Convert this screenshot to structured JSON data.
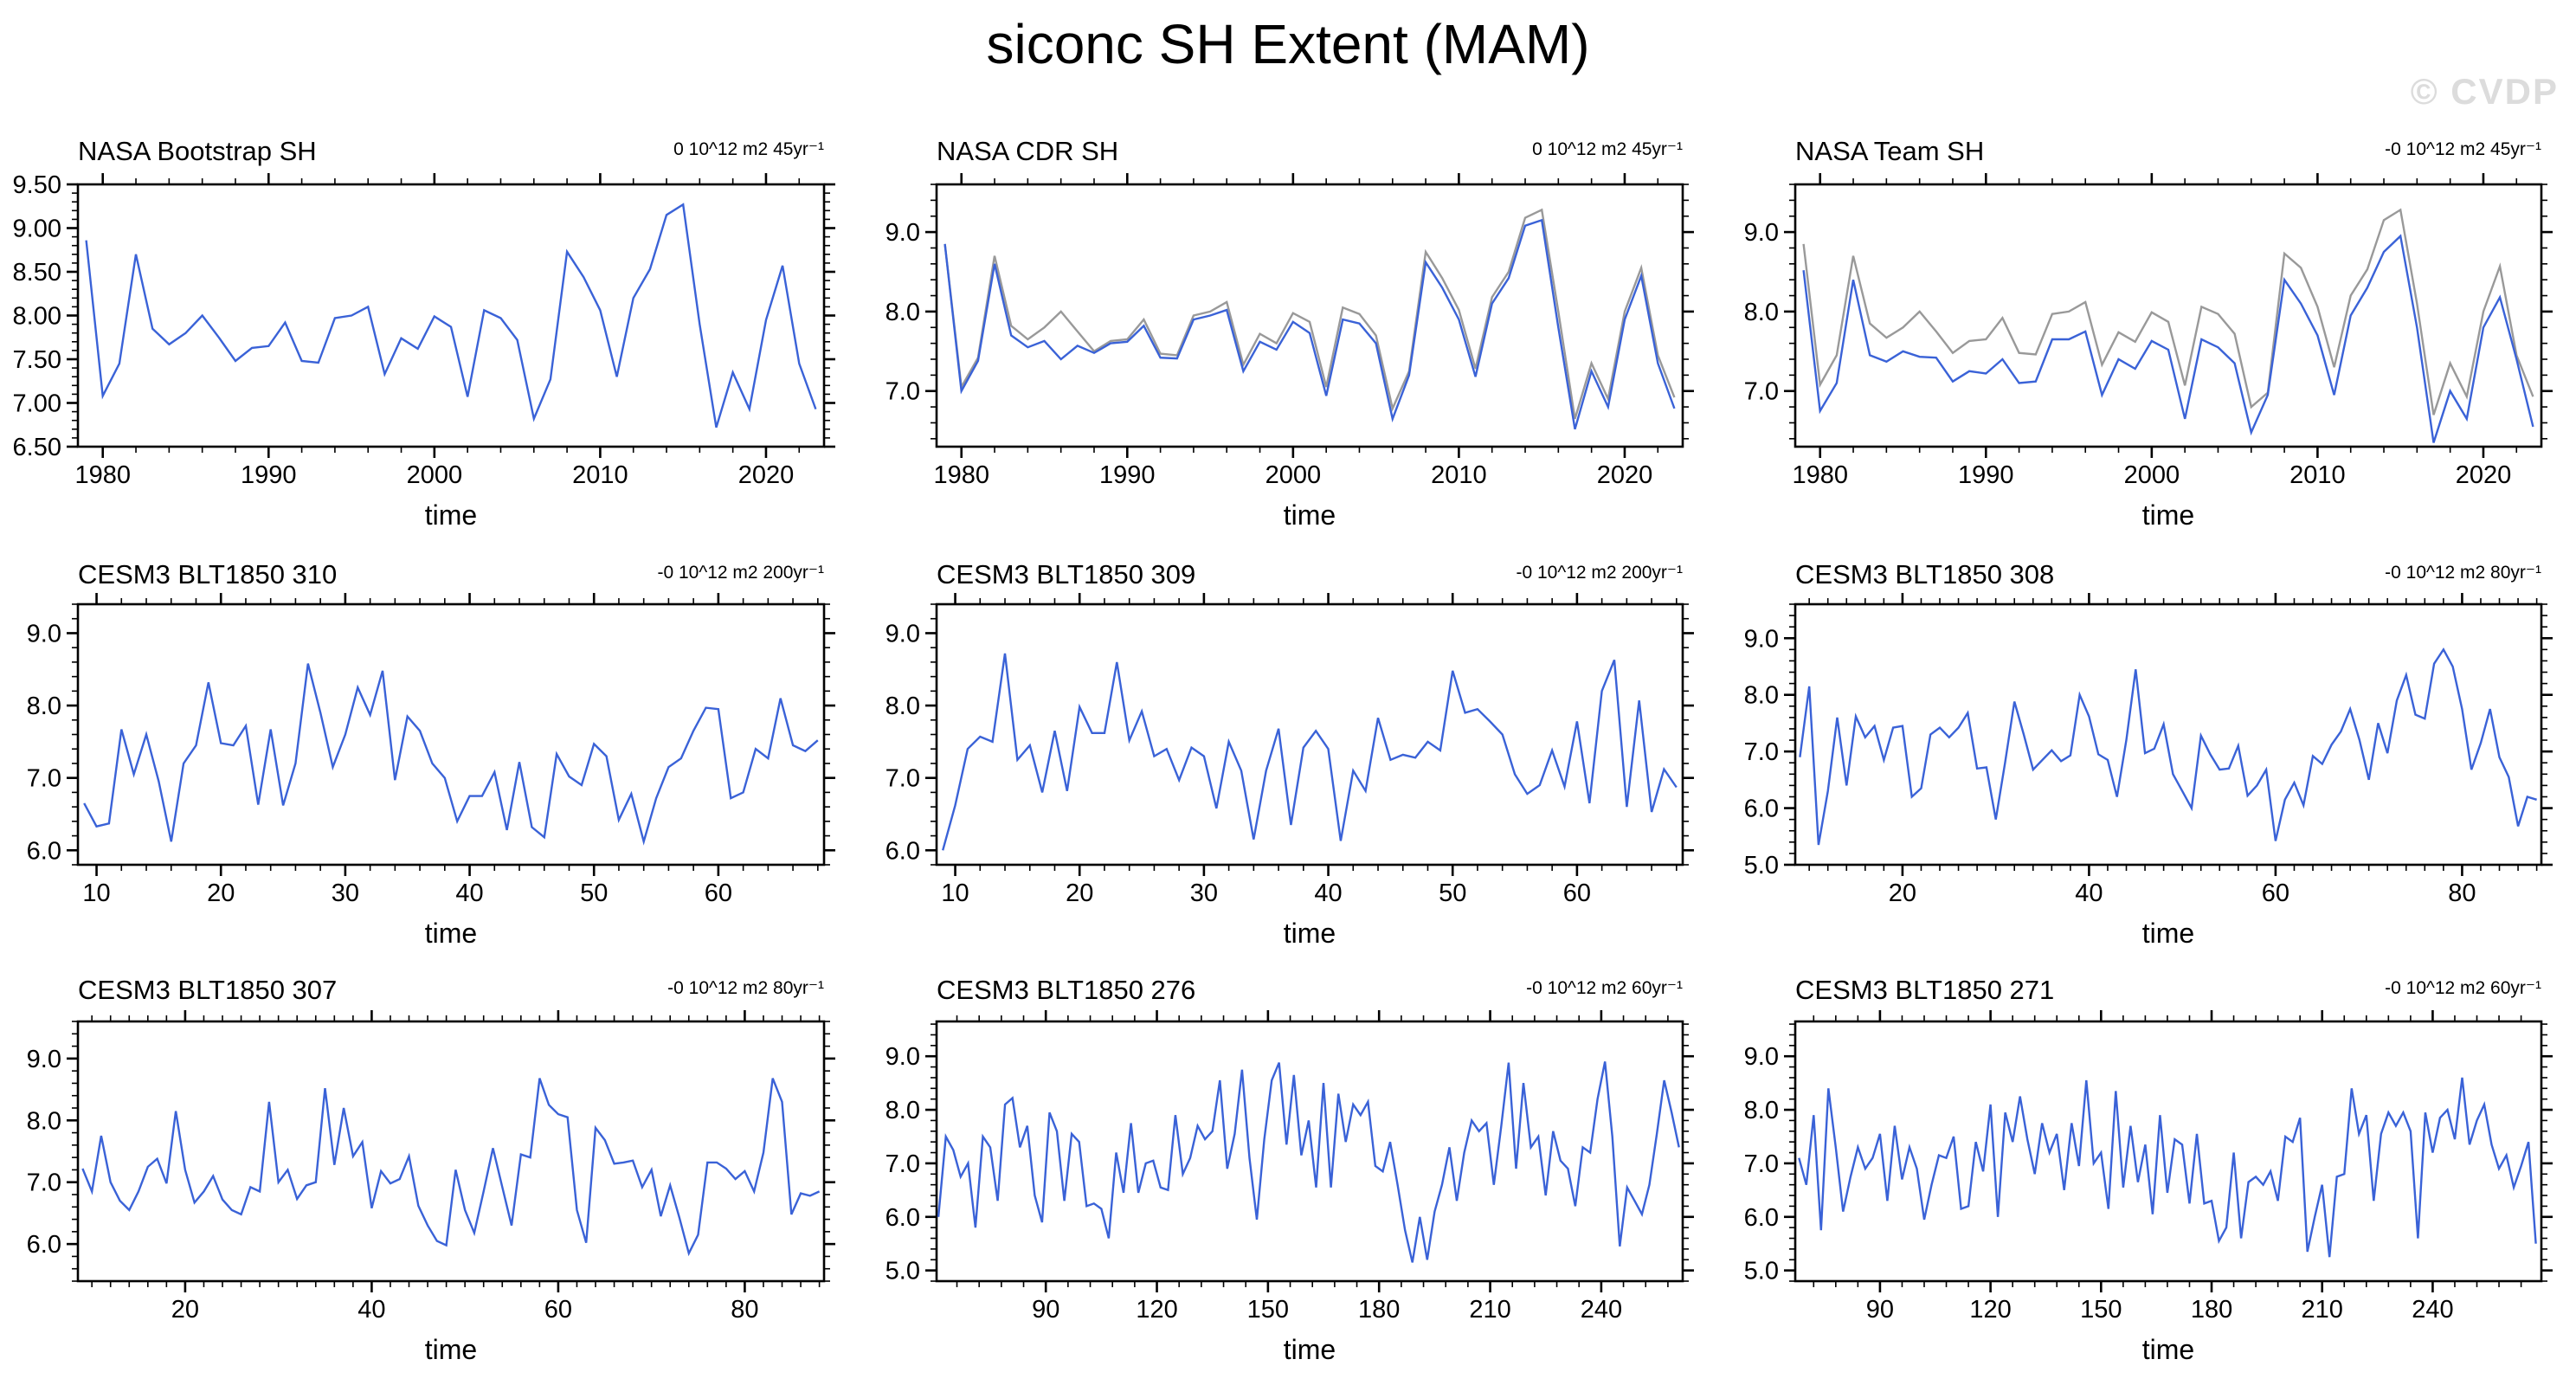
{
  "page": {
    "title": "siconc SH Extent (MAM)",
    "watermark": "© CVDP"
  },
  "colors": {
    "line_blue": "#3a62d7",
    "line_gray": "#999999",
    "watermark_gray": "#dcdcdc",
    "axis_black": "#000000"
  },
  "chart_data": [
    {
      "type": "line",
      "title": "NASA Bootstrap SH",
      "units": "0 10^12 m2 45yr⁻¹",
      "xlabel": "time",
      "x_ticks": [
        1980,
        1990,
        2000,
        2010,
        2020
      ],
      "x_minor": 2,
      "xlim": [
        1978.5,
        2023.5
      ],
      "y_ticks": [
        "6.50",
        "7.00",
        "7.50",
        "8.00",
        "8.50",
        "9.00",
        "9.50"
      ],
      "y_tick_vals": [
        6.5,
        7.0,
        7.5,
        8.0,
        8.5,
        9.0,
        9.5
      ],
      "y_minor": 0.1,
      "ylim": [
        6.5,
        9.5
      ],
      "grid": false,
      "legend": "none",
      "series": [
        {
          "color": "blue",
          "x_start": 1979,
          "x_step": 1,
          "values": [
            8.86,
            7.08,
            7.45,
            8.7,
            7.85,
            7.67,
            7.8,
            8.0,
            7.75,
            7.48,
            7.63,
            7.65,
            7.92,
            7.48,
            7.46,
            7.97,
            8.0,
            8.1,
            7.33,
            7.74,
            7.62,
            7.99,
            7.87,
            7.07,
            8.06,
            7.97,
            7.72,
            6.82,
            7.27,
            8.73,
            8.44,
            8.06,
            7.3,
            8.2,
            8.53,
            9.15,
            9.27,
            7.9,
            6.72,
            7.35,
            6.93,
            7.95,
            8.57,
            7.45,
            6.93
          ]
        }
      ]
    },
    {
      "type": "line",
      "title": "NASA CDR SH",
      "units": "0 10^12 m2 45yr⁻¹",
      "xlabel": "time",
      "x_ticks": [
        1980,
        1990,
        2000,
        2010,
        2020
      ],
      "x_minor": 2,
      "xlim": [
        1978.5,
        2023.5
      ],
      "y_ticks": [
        "7.0",
        "8.0",
        "9.0"
      ],
      "y_tick_vals": [
        7.0,
        8.0,
        9.0
      ],
      "y_minor": 0.2,
      "ylim": [
        6.3,
        9.6
      ],
      "grid": false,
      "legend": "none",
      "series": [
        {
          "color": "gray",
          "x_start": 1979,
          "x_step": 1,
          "values": [
            8.85,
            7.05,
            7.42,
            8.7,
            7.82,
            7.65,
            7.8,
            8.0,
            7.75,
            7.5,
            7.63,
            7.65,
            7.9,
            7.47,
            7.45,
            7.95,
            8.0,
            8.12,
            7.33,
            7.72,
            7.6,
            7.98,
            7.87,
            7.05,
            8.05,
            7.97,
            7.7,
            6.78,
            7.25,
            8.75,
            8.42,
            8.02,
            7.28,
            8.18,
            8.5,
            9.18,
            9.28,
            8.0,
            6.65,
            7.35,
            6.9,
            8.0,
            8.55,
            7.45,
            6.92
          ]
        },
        {
          "color": "blue",
          "x_start": 1979,
          "x_step": 1,
          "values": [
            8.85,
            7.0,
            7.38,
            8.6,
            7.7,
            7.55,
            7.63,
            7.4,
            7.57,
            7.48,
            7.6,
            7.62,
            7.82,
            7.42,
            7.41,
            7.9,
            7.95,
            8.02,
            7.25,
            7.62,
            7.52,
            7.87,
            7.73,
            6.94,
            7.9,
            7.85,
            7.6,
            6.65,
            7.2,
            8.62,
            8.3,
            7.9,
            7.18,
            8.1,
            8.42,
            9.08,
            9.15,
            7.8,
            6.52,
            7.25,
            6.8,
            7.9,
            8.45,
            7.35,
            6.78
          ]
        }
      ]
    },
    {
      "type": "line",
      "title": "NASA Team SH",
      "units": "-0 10^12 m2 45yr⁻¹",
      "xlabel": "time",
      "x_ticks": [
        1980,
        1990,
        2000,
        2010,
        2020
      ],
      "x_minor": 2,
      "xlim": [
        1978.5,
        2023.5
      ],
      "y_ticks": [
        "7.0",
        "8.0",
        "9.0"
      ],
      "y_tick_vals": [
        7.0,
        8.0,
        9.0
      ],
      "y_minor": 0.2,
      "ylim": [
        6.3,
        9.6
      ],
      "grid": false,
      "legend": "none",
      "series": [
        {
          "color": "gray",
          "x_start": 1979,
          "x_step": 1,
          "values": [
            8.85,
            7.08,
            7.45,
            8.7,
            7.85,
            7.67,
            7.8,
            8.0,
            7.75,
            7.48,
            7.63,
            7.65,
            7.92,
            7.48,
            7.46,
            7.97,
            8.0,
            8.12,
            7.33,
            7.74,
            7.62,
            7.99,
            7.87,
            7.07,
            8.06,
            7.97,
            7.72,
            6.8,
            6.98,
            8.73,
            8.55,
            8.06,
            7.3,
            8.2,
            8.53,
            9.15,
            9.28,
            8.1,
            6.7,
            7.35,
            6.93,
            8.0,
            8.57,
            7.45,
            6.93
          ]
        },
        {
          "color": "blue",
          "x_start": 1979,
          "x_step": 1,
          "values": [
            8.52,
            6.75,
            7.1,
            8.4,
            7.45,
            7.37,
            7.5,
            7.43,
            7.42,
            7.12,
            7.25,
            7.22,
            7.4,
            7.1,
            7.12,
            7.65,
            7.65,
            7.75,
            6.95,
            7.4,
            7.28,
            7.63,
            7.52,
            6.65,
            7.65,
            7.55,
            7.35,
            6.48,
            6.95,
            8.4,
            8.1,
            7.7,
            6.95,
            7.95,
            8.3,
            8.75,
            8.95,
            7.8,
            6.35,
            7.0,
            6.65,
            7.8,
            8.18,
            7.4,
            6.55
          ]
        }
      ]
    },
    {
      "type": "line",
      "title": "CESM3 BLT1850 310",
      "units": "-0 10^12 m2 200yr⁻¹",
      "xlabel": "time",
      "x_ticks": [
        10,
        20,
        30,
        40,
        50,
        60
      ],
      "x_minor": 2,
      "xlim": [
        8.5,
        68.5
      ],
      "y_ticks": [
        "6.0",
        "7.0",
        "8.0",
        "9.0"
      ],
      "y_tick_vals": [
        6.0,
        7.0,
        8.0,
        9.0
      ],
      "y_minor": 0.2,
      "ylim": [
        5.8,
        9.4
      ],
      "grid": false,
      "legend": "none",
      "series": [
        {
          "color": "blue",
          "x_start": 9,
          "x_step": 1,
          "values": [
            6.65,
            6.33,
            6.37,
            7.67,
            7.05,
            7.6,
            6.95,
            6.12,
            7.2,
            7.45,
            8.32,
            7.48,
            7.45,
            7.72,
            6.63,
            7.67,
            6.62,
            7.2,
            8.58,
            7.9,
            7.15,
            7.6,
            8.25,
            7.87,
            8.48,
            6.97,
            7.85,
            7.65,
            7.2,
            7.0,
            6.4,
            6.75,
            6.75,
            7.08,
            6.28,
            7.22,
            6.32,
            6.18,
            7.33,
            7.02,
            6.9,
            7.47,
            7.3,
            6.42,
            6.78,
            6.12,
            6.72,
            7.15,
            7.27,
            7.65,
            7.97,
            7.95,
            6.72,
            6.8,
            7.4,
            7.27,
            8.1,
            7.45,
            7.37,
            7.52
          ]
        }
      ]
    },
    {
      "type": "line",
      "title": "CESM3 BLT1850 309",
      "units": "-0 10^12 m2 200yr⁻¹",
      "xlabel": "time",
      "x_ticks": [
        10,
        20,
        30,
        40,
        50,
        60
      ],
      "x_minor": 2,
      "xlim": [
        8.5,
        68.5
      ],
      "y_ticks": [
        "6.0",
        "7.0",
        "8.0",
        "9.0"
      ],
      "y_tick_vals": [
        6.0,
        7.0,
        8.0,
        9.0
      ],
      "y_minor": 0.2,
      "ylim": [
        5.8,
        9.4
      ],
      "grid": false,
      "legend": "none",
      "series": [
        {
          "color": "blue",
          "x_start": 9,
          "x_step": 1,
          "values": [
            6.0,
            6.62,
            7.4,
            7.57,
            7.5,
            8.72,
            7.25,
            7.45,
            6.8,
            7.65,
            6.82,
            7.98,
            7.62,
            7.62,
            8.6,
            7.52,
            7.92,
            7.3,
            7.4,
            6.97,
            7.42,
            7.3,
            6.58,
            7.5,
            7.1,
            6.15,
            7.1,
            7.68,
            6.35,
            7.42,
            7.65,
            7.4,
            6.13,
            7.1,
            6.82,
            7.83,
            7.25,
            7.32,
            7.28,
            7.5,
            7.38,
            8.48,
            7.9,
            7.95,
            7.78,
            7.6,
            7.05,
            6.78,
            6.9,
            7.38,
            6.88,
            7.78,
            6.65,
            8.2,
            8.63,
            6.6,
            8.07,
            6.53,
            7.12,
            6.87
          ]
        }
      ]
    },
    {
      "type": "line",
      "title": "CESM3 BLT1850 308",
      "units": "-0 10^12 m2 80yr⁻¹",
      "xlabel": "time",
      "x_ticks": [
        20,
        40,
        60,
        80
      ],
      "x_minor": 2,
      "xlim": [
        8.5,
        88.5
      ],
      "y_ticks": [
        "5.0",
        "6.0",
        "7.0",
        "8.0",
        "9.0"
      ],
      "y_tick_vals": [
        5.0,
        6.0,
        7.0,
        8.0,
        9.0
      ],
      "y_minor": 0.2,
      "ylim": [
        5.0,
        9.6
      ],
      "grid": false,
      "legend": "none",
      "series": [
        {
          "color": "blue",
          "x_start": 9,
          "x_step": 1,
          "values": [
            6.9,
            8.15,
            5.35,
            6.3,
            7.6,
            6.4,
            7.62,
            7.25,
            7.45,
            6.85,
            7.42,
            7.45,
            6.2,
            6.35,
            7.3,
            7.42,
            7.25,
            7.42,
            7.68,
            6.7,
            6.72,
            5.8,
            6.8,
            7.88,
            7.3,
            6.68,
            6.85,
            7.02,
            6.83,
            6.93,
            8.0,
            7.62,
            6.95,
            6.85,
            6.2,
            7.2,
            8.45,
            6.97,
            7.05,
            7.48,
            6.6,
            6.3,
            6.0,
            7.28,
            6.95,
            6.68,
            6.7,
            7.1,
            6.22,
            6.4,
            6.68,
            5.42,
            6.15,
            6.45,
            6.05,
            6.92,
            6.78,
            7.12,
            7.35,
            7.75,
            7.2,
            6.5,
            7.5,
            6.97,
            7.9,
            8.35,
            7.65,
            7.58,
            8.55,
            8.8,
            8.5,
            7.75,
            6.68,
            7.15,
            7.75,
            6.9,
            6.55,
            5.68,
            6.2,
            6.15
          ]
        }
      ]
    },
    {
      "type": "line",
      "title": "CESM3 BLT1850 307",
      "units": "-0 10^12 m2 80yr⁻¹",
      "xlabel": "time",
      "x_ticks": [
        20,
        40,
        60,
        80
      ],
      "x_minor": 2,
      "xlim": [
        8.5,
        88.5
      ],
      "y_ticks": [
        "6.0",
        "7.0",
        "8.0",
        "9.0"
      ],
      "y_tick_vals": [
        6.0,
        7.0,
        8.0,
        9.0
      ],
      "y_minor": 0.2,
      "ylim": [
        5.4,
        9.6
      ],
      "grid": false,
      "legend": "none",
      "series": [
        {
          "color": "blue",
          "x_start": 9,
          "x_step": 1,
          "values": [
            7.22,
            6.85,
            7.75,
            7.0,
            6.7,
            6.55,
            6.85,
            7.25,
            7.38,
            6.98,
            8.15,
            7.2,
            6.67,
            6.85,
            7.1,
            6.72,
            6.55,
            6.48,
            6.92,
            6.85,
            8.3,
            7.0,
            7.2,
            6.73,
            6.95,
            7.0,
            8.52,
            7.28,
            8.2,
            7.42,
            7.65,
            6.58,
            7.18,
            6.98,
            7.05,
            7.42,
            6.62,
            6.3,
            6.05,
            5.98,
            7.2,
            6.55,
            6.18,
            6.85,
            7.55,
            6.92,
            6.3,
            7.45,
            7.4,
            8.68,
            8.25,
            8.1,
            8.05,
            6.55,
            6.02,
            7.88,
            7.68,
            7.3,
            7.32,
            7.35,
            6.92,
            7.2,
            6.45,
            6.95,
            6.42,
            5.85,
            6.15,
            7.32,
            7.32,
            7.22,
            7.05,
            7.18,
            6.85,
            7.48,
            8.68,
            8.3,
            6.48,
            6.82,
            6.78,
            6.85
          ]
        }
      ]
    },
    {
      "type": "line",
      "title": "CESM3 BLT1850 276",
      "units": "-0 10^12 m2 60yr⁻¹",
      "xlabel": "time",
      "x_ticks": [
        90,
        120,
        150,
        180,
        210,
        240
      ],
      "x_minor": 6,
      "xlim": [
        60.5,
        262
      ],
      "y_ticks": [
        "5.0",
        "6.0",
        "7.0",
        "8.0",
        "9.0"
      ],
      "y_tick_vals": [
        5.0,
        6.0,
        7.0,
        8.0,
        9.0
      ],
      "y_minor": 0.2,
      "ylim": [
        4.8,
        9.65
      ],
      "grid": false,
      "legend": "none",
      "series": [
        {
          "color": "blue",
          "x_start": 61,
          "x_step": 2,
          "values": [
            6.0,
            7.5,
            7.25,
            6.75,
            7.0,
            5.8,
            7.5,
            7.3,
            6.3,
            8.1,
            8.22,
            7.3,
            7.7,
            6.4,
            5.9,
            7.95,
            7.6,
            6.3,
            7.55,
            7.4,
            6.2,
            6.25,
            6.15,
            5.6,
            7.2,
            6.45,
            7.75,
            6.45,
            7.0,
            7.05,
            6.55,
            6.5,
            7.9,
            6.8,
            7.1,
            7.7,
            7.45,
            7.6,
            8.55,
            6.9,
            7.55,
            8.75,
            7.1,
            5.95,
            7.45,
            8.55,
            8.88,
            7.35,
            8.65,
            7.15,
            7.8,
            6.55,
            8.5,
            6.55,
            8.3,
            7.4,
            8.1,
            7.9,
            8.15,
            6.95,
            6.85,
            7.4,
            6.6,
            5.75,
            5.15,
            6.0,
            5.2,
            6.1,
            6.6,
            7.3,
            6.3,
            7.2,
            7.8,
            7.6,
            7.75,
            6.6,
            7.7,
            8.88,
            6.9,
            8.5,
            7.3,
            7.5,
            6.4,
            7.6,
            7.05,
            6.9,
            6.2,
            7.3,
            7.2,
            8.2,
            8.9,
            7.5,
            5.45,
            6.55,
            6.3,
            6.05,
            6.6,
            7.55,
            8.55,
            7.95,
            7.3
          ]
        }
      ]
    },
    {
      "type": "line",
      "title": "CESM3 BLT1850 271",
      "units": "-0 10^12 m2 60yr⁻¹",
      "xlabel": "time",
      "x_ticks": [
        90,
        120,
        150,
        180,
        210,
        240
      ],
      "x_minor": 6,
      "xlim": [
        67,
        269.5
      ],
      "y_ticks": [
        "5.0",
        "6.0",
        "7.0",
        "8.0",
        "9.0"
      ],
      "y_tick_vals": [
        5.0,
        6.0,
        7.0,
        8.0,
        9.0
      ],
      "y_minor": 0.2,
      "ylim": [
        4.8,
        9.65
      ],
      "grid": false,
      "legend": "none",
      "series": [
        {
          "color": "blue",
          "x_start": 68,
          "x_step": 2,
          "values": [
            7.1,
            6.6,
            7.9,
            5.75,
            8.4,
            7.3,
            6.1,
            6.75,
            7.3,
            6.9,
            7.1,
            7.55,
            6.3,
            7.7,
            6.7,
            7.3,
            6.9,
            5.95,
            6.6,
            7.15,
            7.1,
            7.5,
            6.15,
            6.2,
            7.4,
            6.85,
            8.1,
            6.0,
            7.95,
            7.4,
            8.25,
            7.45,
            6.8,
            7.75,
            7.2,
            7.55,
            6.5,
            7.75,
            6.95,
            8.55,
            7.0,
            7.2,
            6.15,
            8.35,
            6.55,
            7.7,
            6.65,
            7.35,
            6.05,
            7.9,
            6.45,
            7.45,
            7.35,
            6.25,
            7.55,
            6.25,
            6.3,
            5.55,
            5.8,
            7.2,
            5.6,
            6.65,
            6.75,
            6.6,
            6.85,
            6.3,
            7.5,
            7.4,
            7.85,
            5.35,
            6.0,
            6.6,
            5.25,
            6.75,
            6.8,
            8.4,
            7.55,
            7.9,
            6.3,
            7.55,
            7.95,
            7.7,
            7.95,
            7.6,
            5.6,
            7.95,
            7.2,
            7.85,
            8.0,
            7.45,
            8.6,
            7.35,
            7.8,
            8.1,
            7.35,
            6.9,
            7.15,
            6.55,
            6.95,
            7.4,
            5.5
          ]
        }
      ]
    }
  ]
}
